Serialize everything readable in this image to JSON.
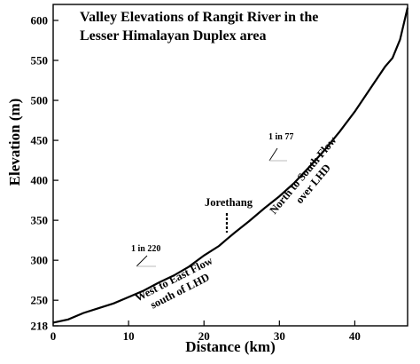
{
  "chart_data": {
    "type": "line",
    "title_line1": "Valley Elevations of Rangit River in the",
    "title_line2": "Lesser Himalayan Duplex area",
    "xlabel": "Distance (km)",
    "ylabel": "Elevation (m)",
    "xlim": [
      0,
      47
    ],
    "ylim": [
      218,
      620
    ],
    "x_ticks": [
      "0",
      "10",
      "20",
      "30",
      "40"
    ],
    "y_ticks": [
      "218",
      "250",
      "300",
      "350",
      "400",
      "450",
      "500",
      "550",
      "600"
    ],
    "grid": false,
    "colors": {
      "line": "#000000",
      "slope_mark": "#bbbbbb"
    },
    "series": [
      {
        "x": [
          0,
          2,
          4,
          6,
          8,
          10,
          12,
          14,
          16,
          18,
          20,
          22,
          23,
          24,
          26,
          28,
          30,
          32,
          34,
          36,
          38,
          40,
          42,
          44,
          45,
          46,
          47
        ],
        "y": [
          222,
          226,
          234,
          240,
          246,
          254,
          262,
          272,
          281,
          292,
          306,
          318,
          326,
          334,
          349,
          365,
          380,
          397,
          417,
          438,
          461,
          486,
          514,
          542,
          553,
          576,
          616
        ]
      }
    ],
    "annotations": {
      "jorethang": {
        "label": "Jorethang",
        "x": 23,
        "y": 330
      },
      "slope_lower": {
        "label": "1 in 220",
        "x": 12
      },
      "slope_upper": {
        "label": "1 in 77",
        "x": 30
      },
      "flow_lower": {
        "line1": "West to East Flow",
        "line2": "south of LHD"
      },
      "flow_upper": {
        "line1": "North to South Flow",
        "line2": "over LHD"
      }
    }
  }
}
